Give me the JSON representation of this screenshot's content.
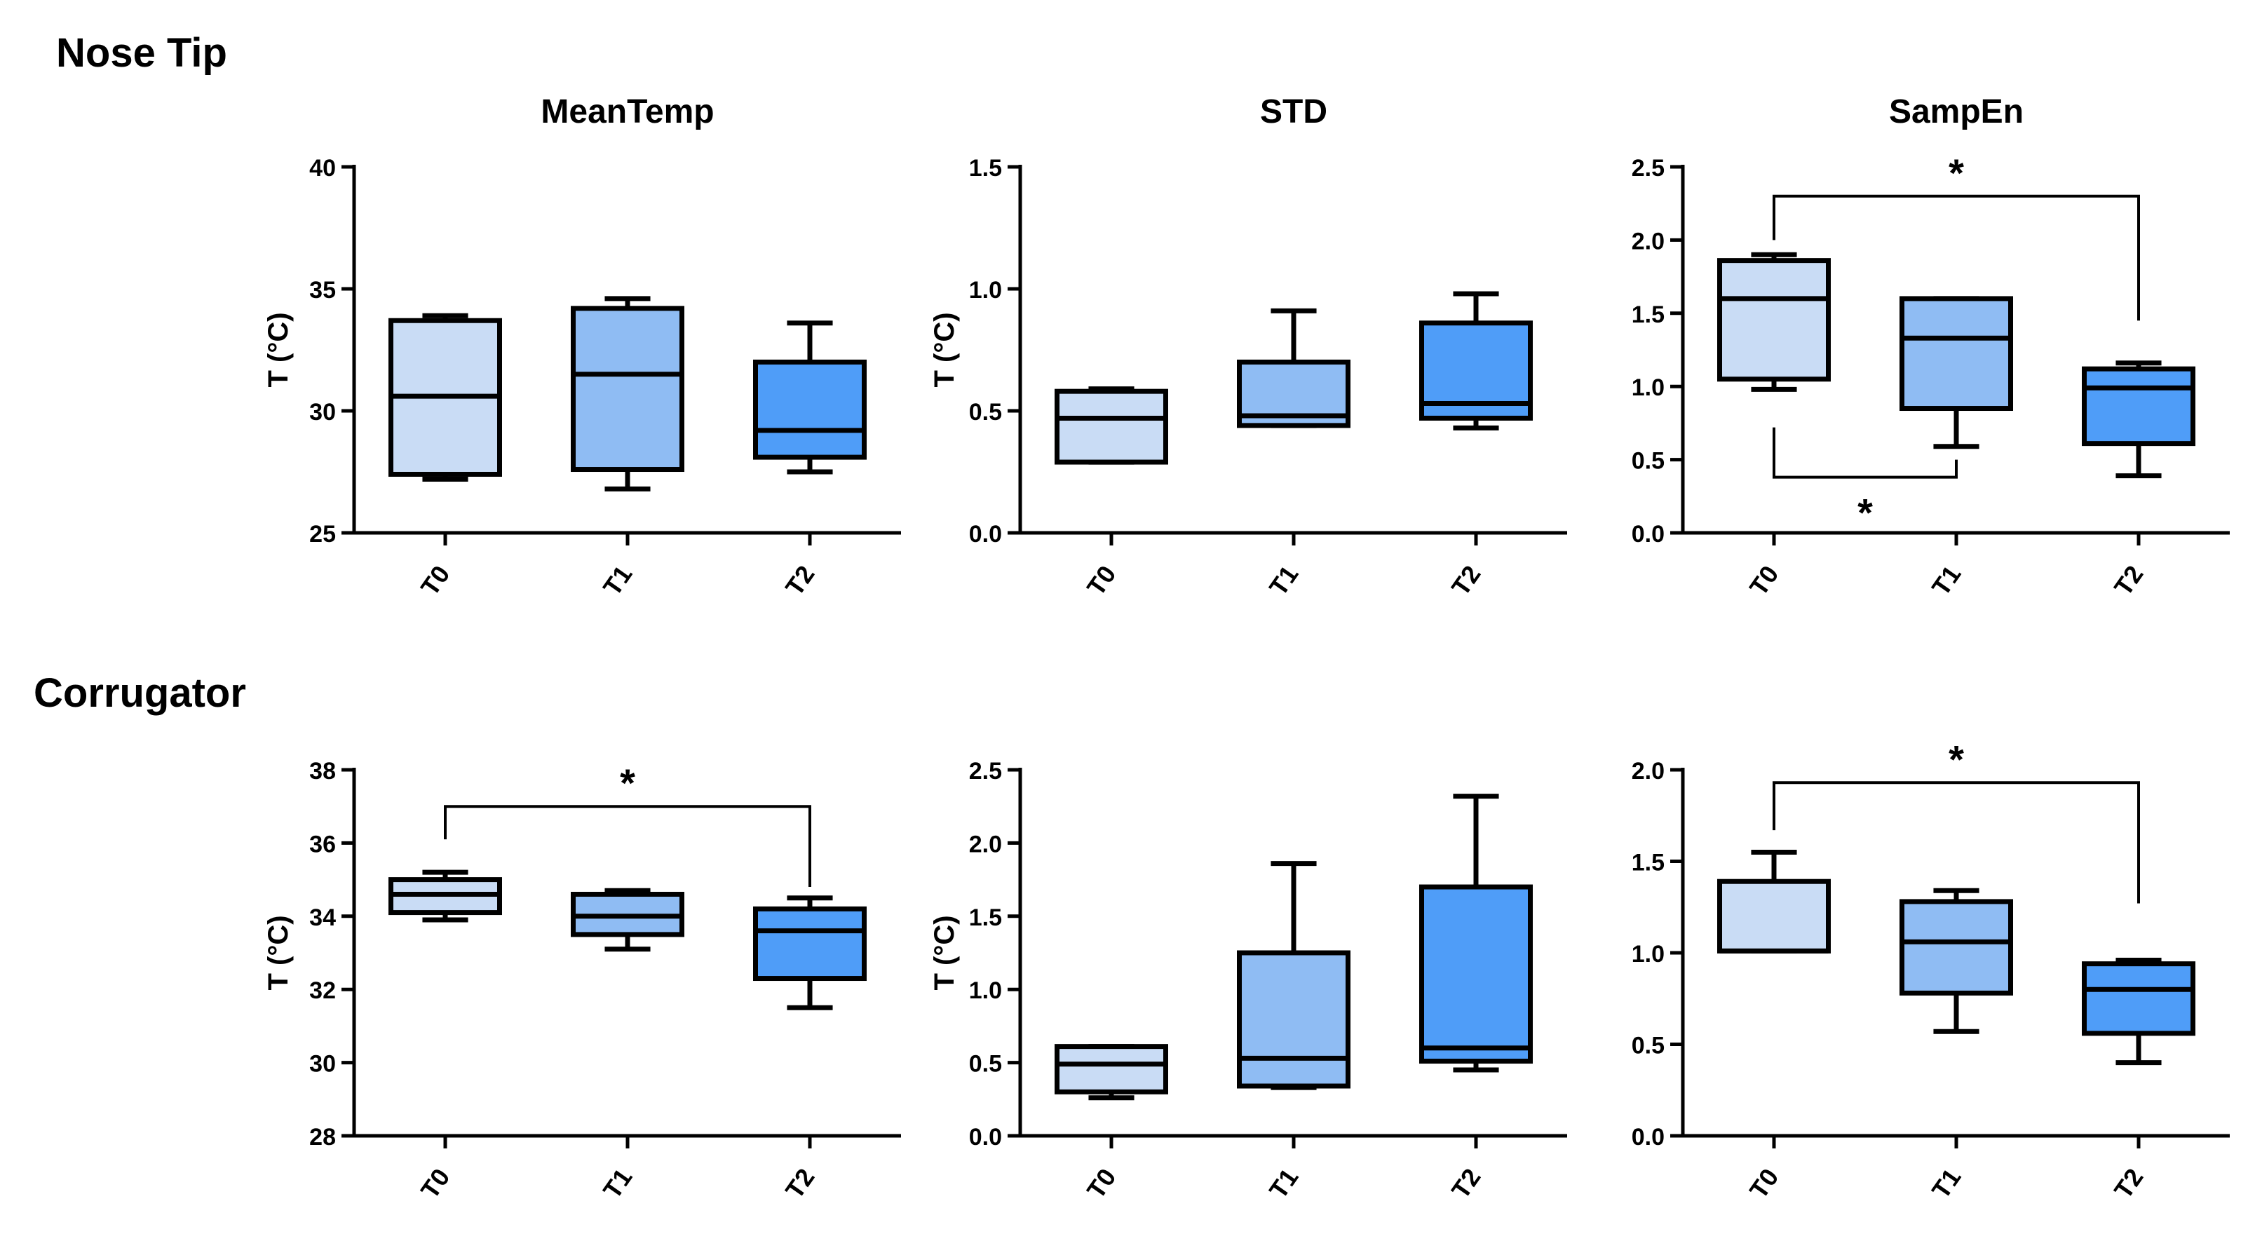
{
  "rows": [
    {
      "title": "Nose Tip"
    },
    {
      "title": "Corrugator"
    }
  ],
  "colors": {
    "T0": "#c9dcf5",
    "T1": "#8fbcf3",
    "T2": "#4f9df8",
    "stroke": "#000000"
  },
  "chart_data": [
    {
      "type": "box",
      "row": "Nose Tip",
      "title": "MeanTemp",
      "ylabel": "T (°C)",
      "ylim": [
        25,
        40
      ],
      "yticks": [
        25,
        30,
        35,
        40
      ],
      "categories": [
        "T0",
        "T1",
        "T2"
      ],
      "boxes": [
        {
          "category": "T0",
          "min": 27.2,
          "q1": 27.4,
          "median": 30.6,
          "q3": 33.7,
          "max": 33.9
        },
        {
          "category": "T1",
          "min": 26.8,
          "q1": 27.6,
          "median": 31.5,
          "q3": 34.2,
          "max": 34.6
        },
        {
          "category": "T2",
          "min": 27.5,
          "q1": 28.1,
          "median": 29.2,
          "q3": 32.0,
          "max": 33.6
        }
      ],
      "significance": []
    },
    {
      "type": "box",
      "row": "Nose Tip",
      "title": "STD",
      "ylabel": "T (°C)",
      "ylim": [
        0,
        1.5
      ],
      "yticks": [
        "0.0",
        "0.5",
        "1.0",
        "1.5"
      ],
      "categories": [
        "T0",
        "T1",
        "T2"
      ],
      "boxes": [
        {
          "category": "T0",
          "min": 0.29,
          "q1": 0.29,
          "median": 0.47,
          "q3": 0.58,
          "max": 0.59
        },
        {
          "category": "T1",
          "min": 0.44,
          "q1": 0.44,
          "median": 0.48,
          "q3": 0.7,
          "max": 0.91
        },
        {
          "category": "T2",
          "min": 0.43,
          "q1": 0.47,
          "median": 0.53,
          "q3": 0.86,
          "max": 0.98
        }
      ],
      "significance": []
    },
    {
      "type": "box",
      "row": "Nose Tip",
      "title": "SampEn",
      "ylabel": "",
      "ylim": [
        0,
        2.5
      ],
      "yticks": [
        "0.0",
        "0.5",
        "1.0",
        "1.5",
        "2.0",
        "2.5"
      ],
      "categories": [
        "T0",
        "T1",
        "T2"
      ],
      "boxes": [
        {
          "category": "T0",
          "min": 0.98,
          "q1": 1.05,
          "median": 1.6,
          "q3": 1.86,
          "max": 1.9
        },
        {
          "category": "T1",
          "min": 0.59,
          "q1": 0.85,
          "median": 1.33,
          "q3": 1.6,
          "max": 1.6
        },
        {
          "category": "T2",
          "min": 0.39,
          "q1": 0.61,
          "median": 0.99,
          "q3": 1.12,
          "max": 1.16
        }
      ],
      "significance": [
        {
          "from": "T0",
          "to": "T2",
          "y": 2.3,
          "from_y": 2.0,
          "to_y": 1.45,
          "label": "*",
          "side": "above"
        },
        {
          "from": "T0",
          "to": "T1",
          "y": 0.38,
          "from_y": 0.72,
          "to_y": 0.5,
          "label": "*",
          "side": "below"
        }
      ]
    },
    {
      "type": "box",
      "row": "Corrugator",
      "title": "",
      "ylabel": "T (°C)",
      "ylim": [
        28,
        38
      ],
      "yticks": [
        28,
        30,
        32,
        34,
        36,
        38
      ],
      "categories": [
        "T0",
        "T1",
        "T2"
      ],
      "boxes": [
        {
          "category": "T0",
          "min": 33.9,
          "q1": 34.1,
          "median": 34.6,
          "q3": 35.0,
          "max": 35.2
        },
        {
          "category": "T1",
          "min": 33.1,
          "q1": 33.5,
          "median": 34.0,
          "q3": 34.6,
          "max": 34.7
        },
        {
          "category": "T2",
          "min": 31.5,
          "q1": 32.3,
          "median": 33.6,
          "q3": 34.2,
          "max": 34.5
        }
      ],
      "significance": [
        {
          "from": "T0",
          "to": "T2",
          "y": 37.0,
          "from_y": 36.1,
          "to_y": 34.8,
          "label": "*",
          "side": "above"
        }
      ]
    },
    {
      "type": "box",
      "row": "Corrugator",
      "title": "",
      "ylabel": "T (°C)",
      "ylim": [
        0,
        2.5
      ],
      "yticks": [
        "0.0",
        "0.5",
        "1.0",
        "1.5",
        "2.0",
        "2.5"
      ],
      "categories": [
        "T0",
        "T1",
        "T2"
      ],
      "boxes": [
        {
          "category": "T0",
          "min": 0.26,
          "q1": 0.3,
          "median": 0.49,
          "q3": 0.61,
          "max": 0.61
        },
        {
          "category": "T1",
          "min": 0.33,
          "q1": 0.34,
          "median": 0.53,
          "q3": 1.25,
          "max": 1.86
        },
        {
          "category": "T2",
          "min": 0.45,
          "q1": 0.51,
          "median": 0.6,
          "q3": 1.7,
          "max": 2.32
        }
      ],
      "significance": []
    },
    {
      "type": "box",
      "row": "Corrugator",
      "title": "",
      "ylabel": "",
      "ylim": [
        0,
        2.0
      ],
      "yticks": [
        "0.0",
        "0.5",
        "1.0",
        "1.5",
        "2.0"
      ],
      "categories": [
        "T0",
        "T1",
        "T2"
      ],
      "boxes": [
        {
          "category": "T0",
          "min": 1.01,
          "q1": 1.01,
          "median": 1.01,
          "q3": 1.39,
          "max": 1.55
        },
        {
          "category": "T1",
          "min": 0.57,
          "q1": 0.78,
          "median": 1.06,
          "q3": 1.28,
          "max": 1.34
        },
        {
          "category": "T2",
          "min": 0.4,
          "q1": 0.56,
          "median": 0.8,
          "q3": 0.94,
          "max": 0.96
        }
      ],
      "significance": [
        {
          "from": "T0",
          "to": "T2",
          "y": 1.93,
          "from_y": 1.67,
          "to_y": 1.27,
          "label": "*",
          "side": "above"
        }
      ]
    }
  ]
}
